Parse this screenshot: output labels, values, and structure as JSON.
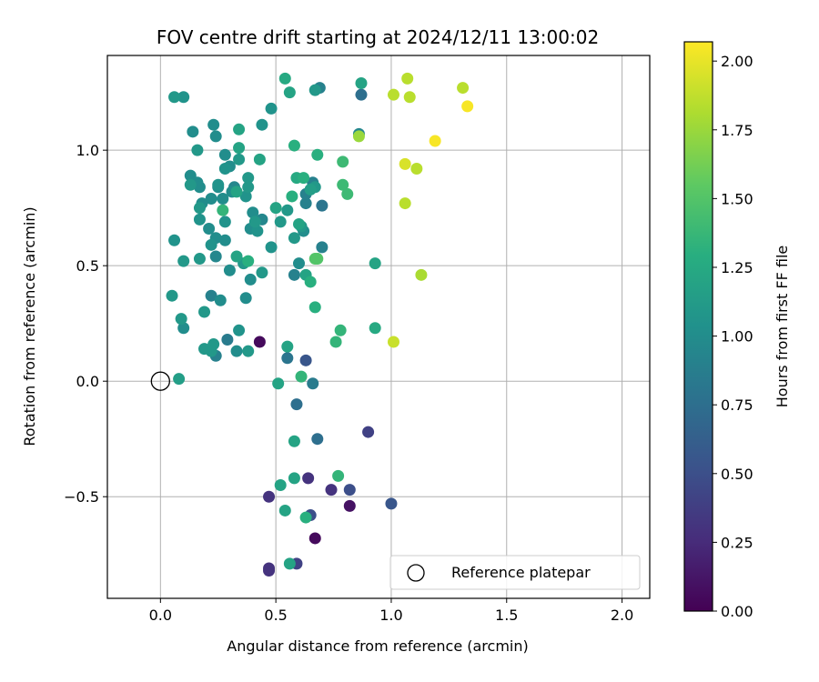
{
  "chart_data": {
    "type": "scatter",
    "title": "FOV centre drift starting at 2024/12/11 13:00:02",
    "xlabel": "Angular distance from reference (arcmin)",
    "ylabel": "Rotation from reference (arcmin)",
    "xlim": [
      -0.23,
      2.12
    ],
    "ylim": [
      -0.94,
      1.41
    ],
    "xticks": [
      0.0,
      0.5,
      1.0,
      1.5,
      2.0
    ],
    "xtick_labels": [
      "0.0",
      "0.5",
      "1.0",
      "1.5",
      "2.0"
    ],
    "yticks": [
      -0.5,
      0.0,
      0.5,
      1.0
    ],
    "ytick_labels": [
      "−0.5",
      "0.0",
      "0.5",
      "1.0"
    ],
    "grid": true,
    "legend": {
      "placement": "lower-right",
      "entries": [
        "Reference platepar"
      ]
    },
    "reference": {
      "x": 0.0,
      "y": 0.0,
      "label": "Reference platepar"
    },
    "colorbar": {
      "label": "Hours from first FF file",
      "colormap": "viridis",
      "range": [
        0.0,
        2.07
      ],
      "ticks": [
        0.0,
        0.25,
        0.5,
        0.75,
        1.0,
        1.25,
        1.5,
        1.75,
        2.0
      ],
      "tick_labels": [
        "0.00",
        "0.25",
        "0.50",
        "0.75",
        "1.00",
        "1.25",
        "1.50",
        "1.75",
        "2.00"
      ]
    },
    "points": [
      [
        0.43,
        0.17,
        0.05
      ],
      [
        0.67,
        -0.68,
        0.05
      ],
      [
        0.82,
        -0.54,
        0.1
      ],
      [
        0.47,
        -0.82,
        0.3
      ],
      [
        0.47,
        -0.81,
        0.3
      ],
      [
        0.59,
        -0.79,
        0.4
      ],
      [
        0.47,
        -0.5,
        0.3
      ],
      [
        0.64,
        -0.42,
        0.3
      ],
      [
        0.74,
        -0.47,
        0.3
      ],
      [
        0.82,
        -0.47,
        0.5
      ],
      [
        0.65,
        -0.58,
        0.5
      ],
      [
        0.9,
        -0.22,
        0.4
      ],
      [
        1.0,
        -0.53,
        0.55
      ],
      [
        0.68,
        -0.25,
        0.75
      ],
      [
        0.59,
        -0.1,
        0.75
      ],
      [
        0.63,
        0.09,
        0.55
      ],
      [
        0.66,
        -0.01,
        0.85
      ],
      [
        0.55,
        0.1,
        0.8
      ],
      [
        0.61,
        0.02,
        1.35
      ],
      [
        0.51,
        -0.01,
        1.2
      ],
      [
        0.55,
        0.15,
        1.2
      ],
      [
        0.58,
        -0.26,
        1.2
      ],
      [
        0.52,
        -0.45,
        1.2
      ],
      [
        0.58,
        -0.42,
        1.2
      ],
      [
        0.54,
        -0.56,
        1.2
      ],
      [
        0.63,
        -0.59,
        1.3
      ],
      [
        0.56,
        -0.79,
        1.2
      ],
      [
        0.77,
        -0.41,
        1.35
      ],
      [
        0.08,
        0.01,
        1.15
      ],
      [
        0.24,
        0.11,
        0.9
      ],
      [
        0.29,
        0.18,
        0.85
      ],
      [
        0.23,
        0.16,
        1.1
      ],
      [
        0.22,
        0.13,
        1.1
      ],
      [
        0.19,
        0.14,
        1.1
      ],
      [
        0.33,
        0.13,
        1.0
      ],
      [
        0.38,
        0.13,
        1.1
      ],
      [
        0.1,
        0.23,
        1.0
      ],
      [
        0.09,
        0.27,
        1.1
      ],
      [
        0.19,
        0.3,
        1.1
      ],
      [
        0.22,
        0.37,
        0.9
      ],
      [
        0.26,
        0.35,
        1.0
      ],
      [
        0.34,
        0.22,
        1.05
      ],
      [
        0.37,
        0.36,
        1.0
      ],
      [
        0.39,
        0.44,
        1.0
      ],
      [
        0.05,
        0.37,
        1.1
      ],
      [
        0.1,
        0.52,
        1.1
      ],
      [
        0.3,
        0.48,
        1.0
      ],
      [
        0.36,
        0.51,
        1.1
      ],
      [
        0.38,
        0.52,
        1.3
      ],
      [
        0.44,
        0.47,
        1.1
      ],
      [
        0.48,
        0.58,
        1.05
      ],
      [
        0.52,
        0.69,
        1.1
      ],
      [
        0.58,
        0.46,
        0.9
      ],
      [
        0.6,
        0.51,
        1.0
      ],
      [
        0.63,
        0.46,
        1.2
      ],
      [
        0.65,
        0.43,
        1.3
      ],
      [
        0.67,
        0.53,
        1.5
      ],
      [
        0.68,
        0.53,
        1.5
      ],
      [
        0.67,
        0.32,
        1.3
      ],
      [
        0.7,
        0.58,
        0.9
      ],
      [
        0.76,
        0.17,
        1.35
      ],
      [
        0.78,
        0.22,
        1.35
      ],
      [
        0.93,
        0.23,
        1.25
      ],
      [
        0.93,
        0.51,
        1.2
      ],
      [
        0.06,
        0.61,
        1.05
      ],
      [
        0.17,
        0.53,
        1.1
      ],
      [
        0.21,
        0.66,
        1.0
      ],
      [
        0.22,
        0.59,
        1.05
      ],
      [
        0.24,
        0.54,
        0.95
      ],
      [
        0.24,
        0.62,
        1.0
      ],
      [
        0.28,
        0.61,
        1.0
      ],
      [
        0.28,
        0.69,
        1.05
      ],
      [
        0.33,
        0.54,
        1.2
      ],
      [
        0.39,
        0.66,
        1.0
      ],
      [
        0.4,
        0.73,
        1.0
      ],
      [
        0.41,
        0.69,
        1.1
      ],
      [
        0.42,
        0.65,
        1.05
      ],
      [
        0.44,
        0.7,
        0.95
      ],
      [
        0.5,
        0.75,
        1.2
      ],
      [
        0.55,
        0.74,
        1.1
      ],
      [
        0.58,
        0.62,
        1.1
      ],
      [
        0.6,
        0.68,
        1.2
      ],
      [
        0.61,
        0.67,
        1.1
      ],
      [
        0.62,
        0.65,
        1.0
      ],
      [
        0.63,
        0.77,
        0.9
      ],
      [
        0.63,
        0.81,
        0.9
      ],
      [
        0.57,
        0.8,
        1.3
      ],
      [
        0.59,
        0.88,
        1.25
      ],
      [
        0.62,
        0.88,
        1.3
      ],
      [
        0.65,
        0.83,
        1.15
      ],
      [
        0.66,
        0.86,
        0.9
      ],
      [
        0.67,
        0.84,
        1.1
      ],
      [
        0.7,
        0.76,
        0.8
      ],
      [
        0.79,
        0.85,
        1.4
      ],
      [
        0.81,
        0.81,
        1.4
      ],
      [
        0.68,
        0.98,
        1.3
      ],
      [
        0.79,
        0.95,
        1.4
      ],
      [
        0.58,
        1.02,
        1.3
      ],
      [
        0.13,
        0.85,
        1.1
      ],
      [
        0.13,
        0.89,
        1.0
      ],
      [
        0.16,
        0.86,
        1.0
      ],
      [
        0.17,
        0.84,
        1.0
      ],
      [
        0.17,
        0.7,
        1.05
      ],
      [
        0.17,
        0.75,
        1.1
      ],
      [
        0.18,
        0.77,
        1.0
      ],
      [
        0.22,
        0.79,
        1.0
      ],
      [
        0.25,
        0.84,
        1.0
      ],
      [
        0.25,
        0.85,
        1.05
      ],
      [
        0.27,
        0.74,
        1.35
      ],
      [
        0.27,
        0.79,
        1.0
      ],
      [
        0.28,
        0.92,
        1.05
      ],
      [
        0.28,
        0.98,
        1.0
      ],
      [
        0.3,
        0.93,
        1.0
      ],
      [
        0.31,
        0.82,
        1.0
      ],
      [
        0.32,
        0.84,
        0.95
      ],
      [
        0.33,
        0.82,
        1.2
      ],
      [
        0.34,
        0.96,
        1.1
      ],
      [
        0.34,
        1.01,
        1.2
      ],
      [
        0.37,
        0.8,
        1.05
      ],
      [
        0.38,
        0.84,
        1.1
      ],
      [
        0.38,
        0.88,
        1.1
      ],
      [
        0.43,
        0.96,
        1.2
      ],
      [
        0.16,
        1.0,
        1.1
      ],
      [
        0.14,
        1.08,
        1.0
      ],
      [
        0.23,
        1.11,
        1.0
      ],
      [
        0.24,
        1.06,
        1.0
      ],
      [
        0.34,
        1.09,
        1.2
      ],
      [
        0.44,
        1.11,
        1.05
      ],
      [
        0.48,
        1.18,
        1.05
      ],
      [
        0.06,
        1.23,
        1.1
      ],
      [
        0.1,
        1.23,
        1.05
      ],
      [
        0.54,
        1.31,
        1.25
      ],
      [
        0.56,
        1.25,
        1.2
      ],
      [
        0.67,
        1.26,
        1.1
      ],
      [
        0.69,
        1.27,
        0.9
      ],
      [
        0.86,
        1.07,
        0.95
      ],
      [
        0.86,
        1.06,
        1.75
      ],
      [
        0.87,
        1.24,
        0.75
      ],
      [
        0.87,
        1.29,
        1.2
      ],
      [
        1.01,
        1.24,
        1.85
      ],
      [
        1.07,
        1.31,
        1.85
      ],
      [
        1.08,
        1.23,
        1.85
      ],
      [
        1.31,
        1.27,
        1.85
      ],
      [
        1.33,
        1.19,
        2.05
      ],
      [
        1.19,
        1.04,
        2.05
      ],
      [
        1.06,
        0.94,
        1.95
      ],
      [
        1.11,
        0.92,
        1.85
      ],
      [
        1.06,
        0.77,
        1.85
      ],
      [
        1.13,
        0.46,
        1.8
      ],
      [
        1.01,
        0.17,
        1.9
      ]
    ]
  }
}
